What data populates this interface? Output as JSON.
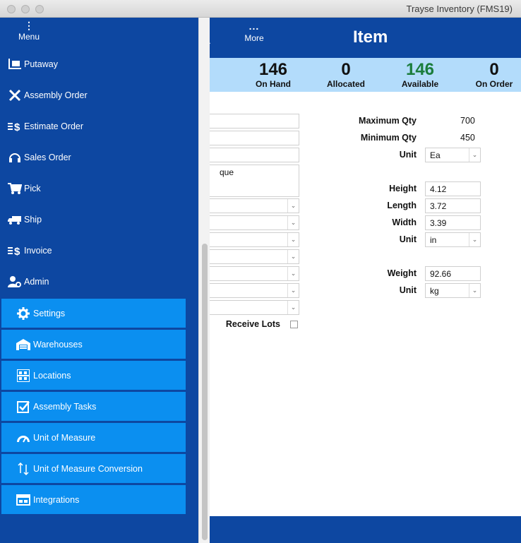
{
  "window": {
    "title": "Trayse Inventory (FMS19)"
  },
  "drawer": {
    "menu_label": "Menu",
    "items": [
      {
        "label": "Putaway",
        "icon": "forklift-icon"
      },
      {
        "label": "Assembly Order",
        "icon": "tools-icon"
      },
      {
        "label": "Estimate Order",
        "icon": "estimate-dollar-icon"
      },
      {
        "label": "Sales Order",
        "icon": "headset-icon"
      },
      {
        "label": "Pick",
        "icon": "cart-icon"
      },
      {
        "label": "Ship",
        "icon": "truck-icon"
      },
      {
        "label": "Invoice",
        "icon": "invoice-dollar-icon"
      },
      {
        "label": "Admin",
        "icon": "admin-user-gear-icon"
      }
    ],
    "admin_subitems": [
      {
        "label": "Settings",
        "icon": "gear-icon"
      },
      {
        "label": "Warehouses",
        "icon": "warehouse-icon"
      },
      {
        "label": "Locations",
        "icon": "shelves-icon"
      },
      {
        "label": "Assembly Tasks",
        "icon": "checkbox-icon"
      },
      {
        "label": "Unit of Measure",
        "icon": "gauge-icon"
      },
      {
        "label": "Unit of Measure Conversion",
        "icon": "arrows-updown-icon"
      },
      {
        "label": "Integrations",
        "icon": "integration-window-icon"
      }
    ]
  },
  "header": {
    "prev_label": "..",
    "more_label": "More",
    "more_dots": "...",
    "title": "Item"
  },
  "stats": [
    {
      "value": "146",
      "label": "On Hand"
    },
    {
      "value": "0",
      "label": "Allocated"
    },
    {
      "value": "146",
      "label": "Available"
    },
    {
      "value": "0",
      "label": "On Order"
    }
  ],
  "form": {
    "description_partial": "que",
    "receive_lots_label": "Receive Lots",
    "maximum_qty_label": "Maximum Qty",
    "maximum_qty": "700",
    "minimum_qty_label": "Minimum Qty",
    "minimum_qty": "450",
    "unit_label": "Unit",
    "unit": "Ea",
    "height_label": "Height",
    "height": "4.12",
    "length_label": "Length",
    "length": "3.72",
    "width_label": "Width",
    "width": "3.39",
    "dimension_unit_label": "Unit",
    "dimension_unit": "in",
    "weight_label": "Weight",
    "weight": "92.66",
    "weight_unit_label": "Unit",
    "weight_unit": "kg"
  },
  "colors": {
    "primary": "#0d47a1",
    "submenu": "#0b8ff0",
    "stats_bg": "#b3dcfb",
    "available": "#1b7d3c"
  }
}
